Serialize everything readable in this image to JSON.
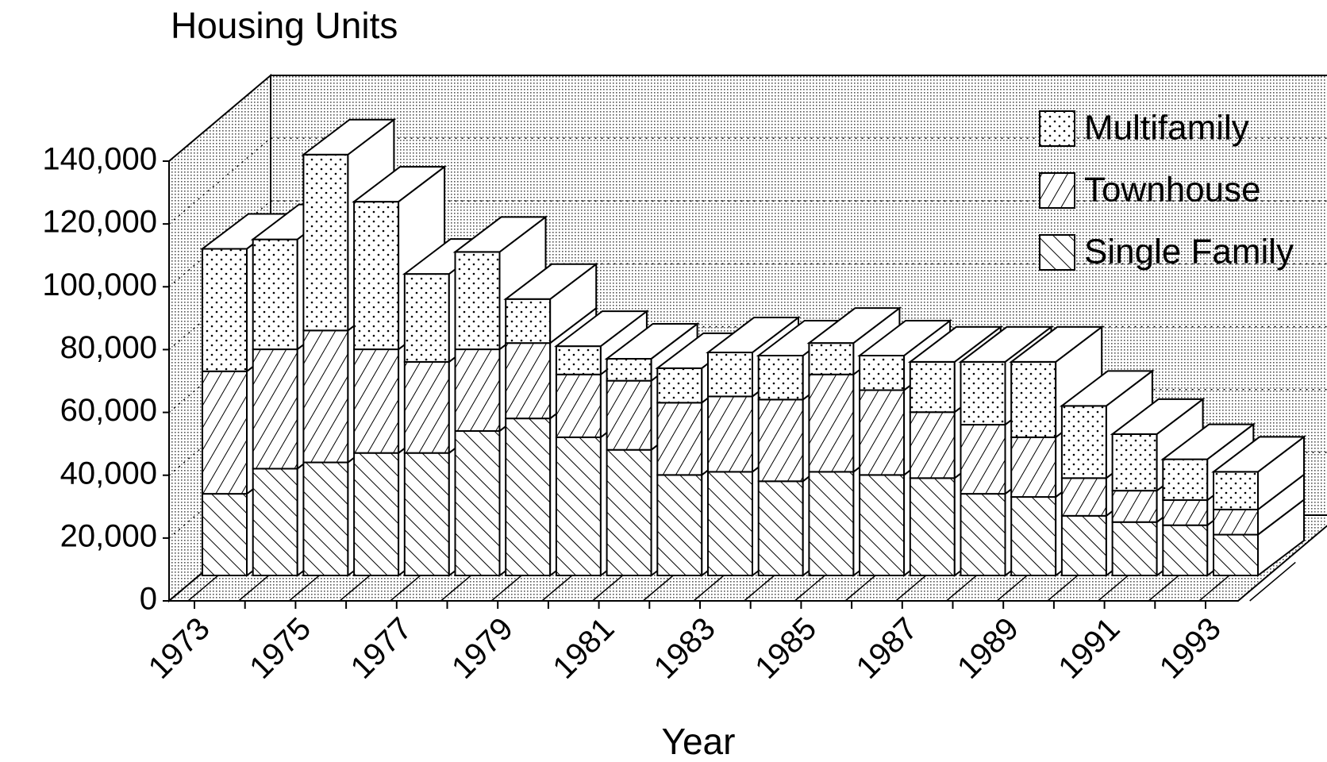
{
  "chart_data": {
    "type": "bar3d_stacked",
    "title": "Housing Units",
    "x_label": "Year",
    "categories": [
      "1973",
      null,
      "1975",
      null,
      "1977",
      null,
      "1979",
      null,
      "1981",
      null,
      "1983",
      null,
      "1985",
      null,
      "1987",
      null,
      "1989",
      null,
      "1991",
      null,
      "1993"
    ],
    "series": [
      {
        "name": "Single Family",
        "color": "#000000",
        "values": [
          26000,
          34000,
          36000,
          39000,
          39000,
          46000,
          50000,
          44000,
          40000,
          32000,
          33000,
          30000,
          33000,
          32000,
          31000,
          26000,
          25000,
          19000,
          17000,
          16000,
          13000
        ]
      },
      {
        "name": "Townhouse",
        "color": "#000000",
        "values": [
          39000,
          38000,
          42000,
          33000,
          29000,
          26000,
          24000,
          20000,
          22000,
          23000,
          24000,
          26000,
          31000,
          27000,
          21000,
          22000,
          19000,
          12000,
          10000,
          8000,
          8000
        ]
      },
      {
        "name": "Multifamily",
        "color": "#000000",
        "values": [
          39000,
          35000,
          56000,
          47000,
          28000,
          31000,
          14000,
          9000,
          7000,
          11000,
          14000,
          14000,
          10000,
          11000,
          16000,
          20000,
          24000,
          23000,
          18000,
          13000,
          12000
        ]
      }
    ],
    "ylim": [
      0,
      140000
    ],
    "yticks": [
      0,
      {
        "value": 20000,
        "label": "20,000"
      },
      {
        "value": 40000,
        "label": "40,000"
      },
      {
        "value": 60000,
        "label": "60,000"
      },
      {
        "value": 80000,
        "label": "80,000"
      },
      {
        "value": 100000,
        "label": "100,000"
      },
      {
        "value": 120000,
        "label": "120,000"
      },
      {
        "value": 140000,
        "label": "140,000"
      }
    ],
    "grid": true,
    "legend": "upper right"
  }
}
